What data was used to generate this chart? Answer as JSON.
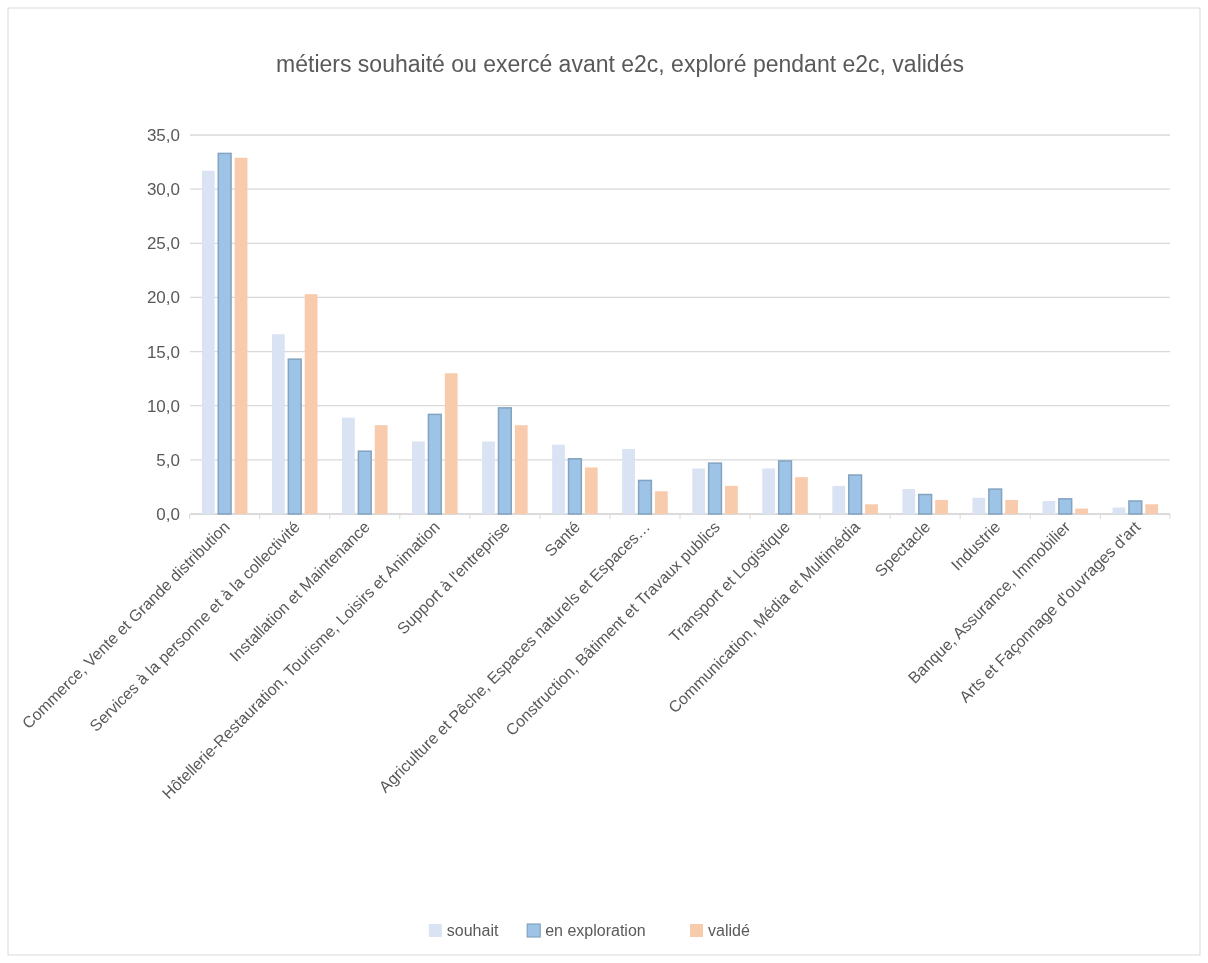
{
  "chart_data": {
    "type": "bar",
    "title": "métiers souhaité ou exercé avant e2c, exploré pendant e2c, validés",
    "categories": [
      "Commerce, Vente et Grande distribution",
      "Services à la personne et à la collectivité",
      "Installation et Maintenance",
      "Hôtellerie-Restauration, Tourisme, Loisirs et Animation",
      "Support à l'entreprise",
      "Santé",
      "Agriculture et Pêche, Espaces naturels et Espaces…",
      "Construction, Bâtiment et Travaux publics",
      "Transport et Logistique",
      "Communication, Média et Multimédia",
      "Spectacle",
      "Industrie",
      "Banque, Assurance, Immobilier",
      "Arts et Façonnage d'ouvrages d'art"
    ],
    "series": [
      {
        "name": "souhait",
        "color": "#dae3f3",
        "values": [
          31.7,
          16.6,
          8.9,
          6.7,
          6.7,
          6.4,
          6.0,
          4.2,
          4.2,
          2.6,
          2.3,
          1.5,
          1.2,
          0.6
        ]
      },
      {
        "name": "en exploration",
        "color": "#9dc3e6",
        "values": [
          33.3,
          14.3,
          5.8,
          9.2,
          9.8,
          5.1,
          3.1,
          4.7,
          4.9,
          3.6,
          1.8,
          2.3,
          1.4,
          1.2
        ]
      },
      {
        "name": "validé",
        "color": "#f8cbad",
        "values": [
          32.9,
          20.3,
          8.2,
          13.0,
          8.2,
          4.3,
          2.1,
          2.6,
          3.4,
          0.9,
          1.3,
          1.3,
          0.5,
          0.9
        ]
      }
    ],
    "ylim": [
      0,
      35
    ],
    "yticks": [
      {
        "value": 0,
        "label": "0,0"
      },
      {
        "value": 5,
        "label": "5,0"
      },
      {
        "value": 10,
        "label": "10,0"
      },
      {
        "value": 15,
        "label": "15,0"
      },
      {
        "value": 20,
        "label": "20,0"
      },
      {
        "value": 25,
        "label": "25,0"
      },
      {
        "value": 30,
        "label": "30,0"
      },
      {
        "value": 35,
        "label": "35,0"
      }
    ],
    "grid": "y",
    "legend": "bottom"
  }
}
